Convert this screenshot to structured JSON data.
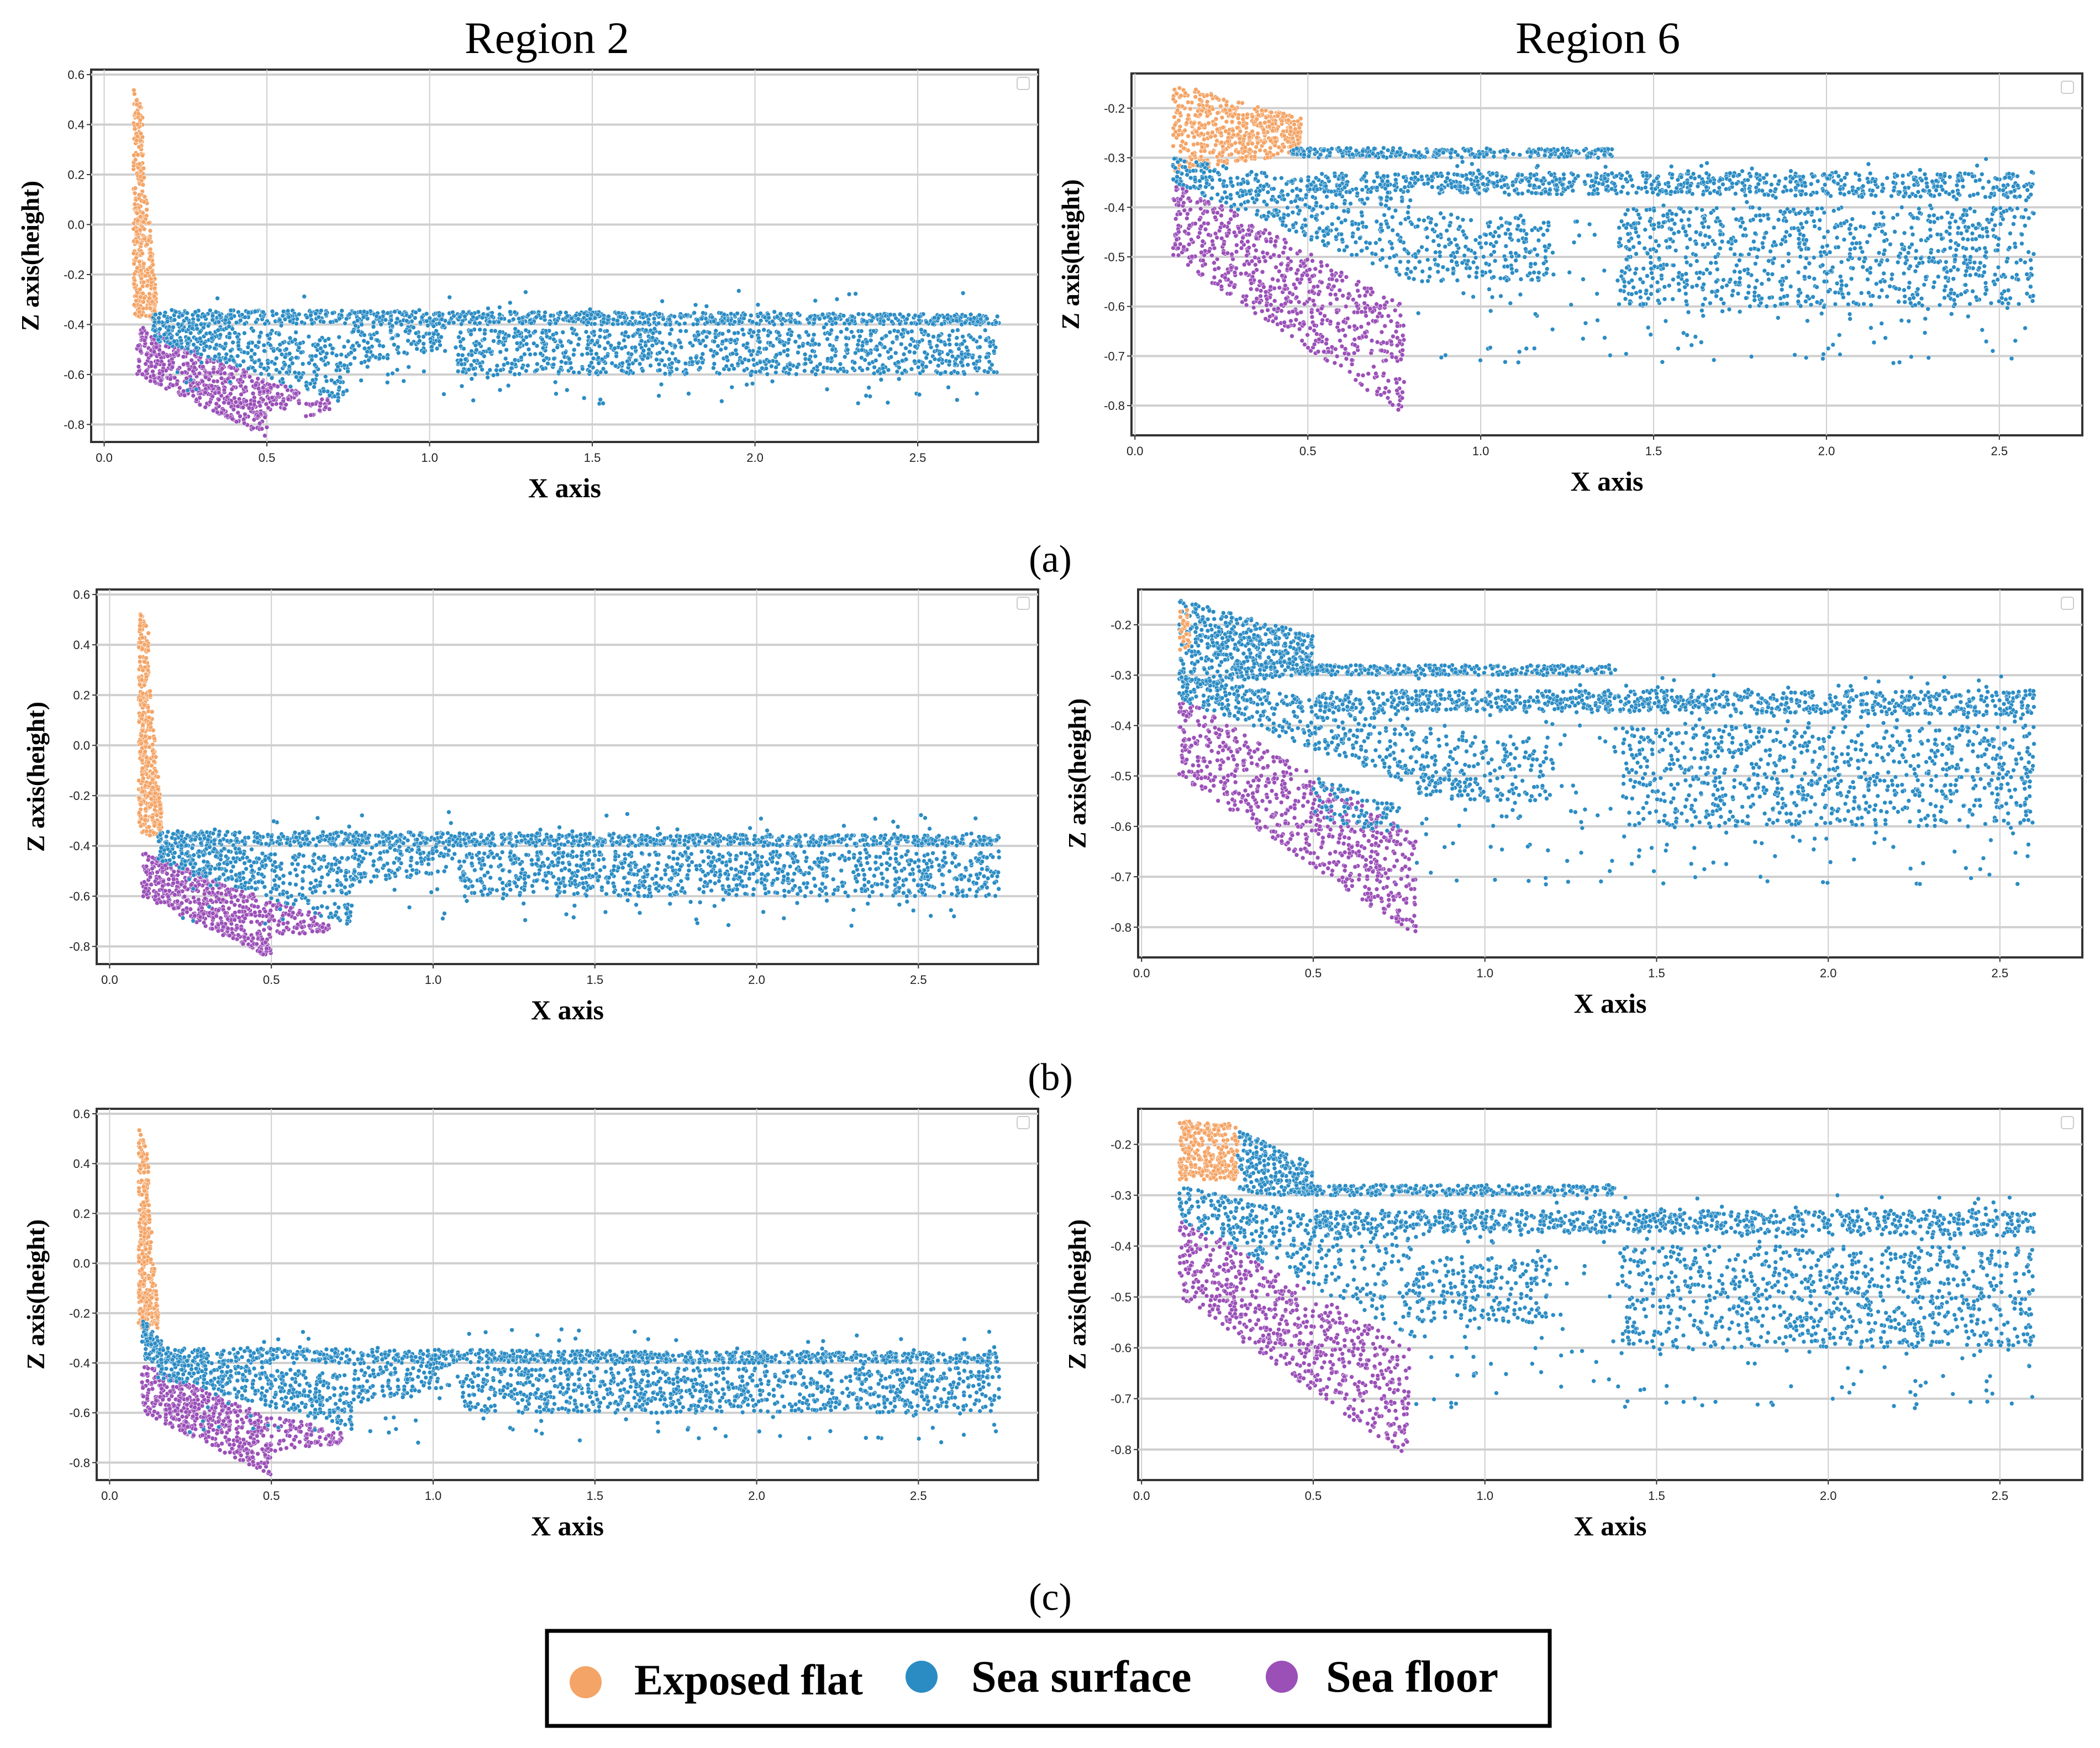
{
  "colors": {
    "exposed_flat": "#f4a466",
    "sea_surface": "#2b8cc4",
    "sea_floor": "#9b50b8"
  },
  "column_titles": [
    "Region 2",
    "Region 6"
  ],
  "row_labels": [
    "(a)",
    "(b)",
    "(c)"
  ],
  "legend": {
    "items": [
      {
        "key": "exposed_flat",
        "label": "Exposed flat"
      },
      {
        "key": "sea_surface",
        "label": "Sea surface"
      },
      {
        "key": "sea_floor",
        "label": "Sea floor"
      }
    ]
  },
  "chart_data": [
    {
      "type": "scatter",
      "row": "(a)",
      "title": "Region 2",
      "xlabel": "X axis",
      "ylabel": "Z axis(height)",
      "xlim": [
        -0.04,
        2.87
      ],
      "ylim": [
        -0.87,
        0.62
      ],
      "xticks": [
        "0.0",
        "0.5",
        "1.0",
        "1.5",
        "2.0",
        "2.5"
      ],
      "yticks": [
        "-0.8",
        "-0.6",
        "-0.4",
        "-0.2",
        "0.0",
        "0.2",
        "0.4",
        "0.6"
      ],
      "grid": true,
      "clusters": [
        {
          "class": "exposed_flat",
          "x": [
            0.09,
            0.12
          ],
          "top": [
            0.55,
            0.45
          ],
          "bottom": [
            -0.36,
            -0.38
          ],
          "n": 260
        },
        {
          "class": "exposed_flat",
          "x": [
            0.12,
            0.16
          ],
          "top": [
            0.3,
            -0.28
          ],
          "bottom": [
            -0.38,
            -0.38
          ],
          "n": 140
        },
        {
          "class": "sea_floor",
          "x": [
            0.1,
            0.5
          ],
          "top": [
            -0.4,
            -0.62
          ],
          "bottom": [
            -0.6,
            -0.85
          ],
          "n": 520
        },
        {
          "class": "sea_floor",
          "x": [
            0.5,
            0.6
          ],
          "top": [
            -0.62,
            -0.66
          ],
          "bottom": [
            -0.76,
            -0.72
          ],
          "n": 60
        },
        {
          "class": "sea_floor",
          "x": [
            0.62,
            0.7
          ],
          "top": [
            -0.68,
            -0.7
          ],
          "bottom": [
            -0.78,
            -0.74
          ],
          "n": 25
        },
        {
          "class": "sea_surface",
          "x": [
            0.15,
            2.75
          ],
          "top": [
            -0.34,
            -0.36
          ],
          "bottom": [
            -0.4,
            -0.4
          ],
          "n": 900
        },
        {
          "class": "sea_surface",
          "x": [
            0.15,
            0.75
          ],
          "top": [
            -0.38,
            -0.45
          ],
          "bottom": [
            -0.46,
            -0.72
          ],
          "n": 380
        },
        {
          "class": "sea_surface",
          "x": [
            0.75,
            1.05
          ],
          "top": [
            -0.4,
            -0.4
          ],
          "bottom": [
            -0.56,
            -0.5
          ],
          "n": 120
        },
        {
          "class": "sea_surface",
          "x": [
            1.08,
            2.75
          ],
          "top": [
            -0.42,
            -0.42
          ],
          "bottom": [
            -0.6,
            -0.6
          ],
          "n": 900
        },
        {
          "class": "sea_surface",
          "x": [
            0.2,
            2.75
          ],
          "top": [
            -0.26,
            -0.26
          ],
          "bottom": [
            -0.72,
            -0.72
          ],
          "n": 160
        }
      ]
    },
    {
      "type": "scatter",
      "row": "(a)",
      "title": "Region 6",
      "xlabel": "X axis",
      "ylabel": "Z axis(height)",
      "xlim": [
        -0.01,
        2.74
      ],
      "ylim": [
        -0.86,
        -0.13
      ],
      "xticks": [
        "0.0",
        "0.5",
        "1.0",
        "1.5",
        "2.0",
        "2.5"
      ],
      "yticks": [
        "-0.8",
        "-0.7",
        "-0.6",
        "-0.5",
        "-0.4",
        "-0.3",
        "-0.2"
      ],
      "grid": true,
      "clusters": [
        {
          "class": "exposed_flat",
          "x": [
            0.11,
            0.48
          ],
          "top": [
            -0.15,
            -0.22
          ],
          "bottom": [
            -0.33,
            -0.29
          ],
          "n": 520
        },
        {
          "class": "sea_floor",
          "x": [
            0.11,
            0.78
          ],
          "top": [
            -0.34,
            -0.6
          ],
          "bottom": [
            -0.5,
            -0.82
          ],
          "n": 700
        },
        {
          "class": "sea_surface",
          "x": [
            0.45,
            1.38
          ],
          "top": [
            -0.28,
            -0.28
          ],
          "bottom": [
            -0.3,
            -0.3
          ],
          "n": 280
        },
        {
          "class": "sea_surface",
          "x": [
            0.5,
            2.6
          ],
          "top": [
            -0.33,
            -0.33
          ],
          "bottom": [
            -0.37,
            -0.38
          ],
          "n": 800
        },
        {
          "class": "sea_surface",
          "x": [
            0.11,
            0.8
          ],
          "top": [
            -0.3,
            -0.38
          ],
          "bottom": [
            -0.35,
            -0.55
          ],
          "n": 400
        },
        {
          "class": "sea_surface",
          "x": [
            0.8,
            1.2
          ],
          "top": [
            -0.42,
            -0.42
          ],
          "bottom": [
            -0.55,
            -0.55
          ],
          "n": 200
        },
        {
          "class": "sea_surface",
          "x": [
            1.4,
            2.6
          ],
          "top": [
            -0.4,
            -0.4
          ],
          "bottom": [
            -0.6,
            -0.6
          ],
          "n": 800
        },
        {
          "class": "sea_surface",
          "x": [
            0.8,
            2.6
          ],
          "top": [
            -0.3,
            -0.3
          ],
          "bottom": [
            -0.72,
            -0.72
          ],
          "n": 260
        }
      ]
    },
    {
      "type": "scatter",
      "row": "(b)",
      "title": "Region 2",
      "xlabel": "X axis",
      "ylabel": "Z axis(height)",
      "xlim": [
        -0.04,
        2.87
      ],
      "ylim": [
        -0.87,
        0.62
      ],
      "xticks": [
        "0.0",
        "0.5",
        "1.0",
        "1.5",
        "2.0",
        "2.5"
      ],
      "yticks": [
        "-0.8",
        "-0.6",
        "-0.4",
        "-0.2",
        "0.0",
        "0.2",
        "0.4",
        "0.6"
      ],
      "grid": true,
      "clusters": [
        {
          "class": "exposed_flat",
          "x": [
            0.09,
            0.12
          ],
          "top": [
            0.55,
            0.45
          ],
          "bottom": [
            -0.34,
            -0.36
          ],
          "n": 260
        },
        {
          "class": "exposed_flat",
          "x": [
            0.12,
            0.16
          ],
          "top": [
            0.3,
            -0.26
          ],
          "bottom": [
            -0.36,
            -0.36
          ],
          "n": 140
        },
        {
          "class": "sea_floor",
          "x": [
            0.1,
            0.5
          ],
          "top": [
            -0.42,
            -0.62
          ],
          "bottom": [
            -0.6,
            -0.85
          ],
          "n": 520
        },
        {
          "class": "sea_floor",
          "x": [
            0.5,
            0.68
          ],
          "top": [
            -0.62,
            -0.68
          ],
          "bottom": [
            -0.76,
            -0.74
          ],
          "n": 80
        },
        {
          "class": "sea_surface",
          "x": [
            0.15,
            2.75
          ],
          "top": [
            -0.34,
            -0.36
          ],
          "bottom": [
            -0.4,
            -0.4
          ],
          "n": 900
        },
        {
          "class": "sea_surface",
          "x": [
            0.15,
            0.75
          ],
          "top": [
            -0.38,
            -0.45
          ],
          "bottom": [
            -0.46,
            -0.72
          ],
          "n": 380
        },
        {
          "class": "sea_surface",
          "x": [
            0.75,
            1.05
          ],
          "top": [
            -0.4,
            -0.4
          ],
          "bottom": [
            -0.56,
            -0.5
          ],
          "n": 120
        },
        {
          "class": "sea_surface",
          "x": [
            1.08,
            2.75
          ],
          "top": [
            -0.42,
            -0.42
          ],
          "bottom": [
            -0.6,
            -0.6
          ],
          "n": 900
        },
        {
          "class": "sea_surface",
          "x": [
            0.2,
            2.75
          ],
          "top": [
            -0.26,
            -0.26
          ],
          "bottom": [
            -0.72,
            -0.72
          ],
          "n": 160
        }
      ]
    },
    {
      "type": "scatter",
      "row": "(b)",
      "title": "Region 6",
      "xlabel": "X axis",
      "ylabel": "Z axis(height)",
      "xlim": [
        -0.01,
        2.74
      ],
      "ylim": [
        -0.86,
        -0.13
      ],
      "xticks": [
        "0.0",
        "0.5",
        "1.0",
        "1.5",
        "2.0",
        "2.5"
      ],
      "yticks": [
        "-0.8",
        "-0.7",
        "-0.6",
        "-0.5",
        "-0.4",
        "-0.3",
        "-0.2"
      ],
      "grid": true,
      "clusters": [
        {
          "class": "sea_surface",
          "x": [
            0.11,
            0.5
          ],
          "top": [
            -0.15,
            -0.22
          ],
          "bottom": [
            -0.32,
            -0.3
          ],
          "n": 520
        },
        {
          "class": "exposed_flat",
          "x": [
            0.11,
            0.14
          ],
          "top": [
            -0.17,
            -0.17
          ],
          "bottom": [
            -0.25,
            -0.25
          ],
          "n": 30
        },
        {
          "class": "sea_floor",
          "x": [
            0.11,
            0.8
          ],
          "top": [
            -0.34,
            -0.62
          ],
          "bottom": [
            -0.5,
            -0.82
          ],
          "n": 700
        },
        {
          "class": "sea_surface",
          "x": [
            0.5,
            0.75
          ],
          "top": [
            -0.5,
            -0.56
          ],
          "bottom": [
            -0.58,
            -0.62
          ],
          "n": 90
        },
        {
          "class": "sea_surface",
          "x": [
            0.45,
            1.38
          ],
          "top": [
            -0.28,
            -0.28
          ],
          "bottom": [
            -0.3,
            -0.3
          ],
          "n": 280
        },
        {
          "class": "sea_surface",
          "x": [
            0.5,
            2.6
          ],
          "top": [
            -0.33,
            -0.33
          ],
          "bottom": [
            -0.37,
            -0.38
          ],
          "n": 800
        },
        {
          "class": "sea_surface",
          "x": [
            0.11,
            0.8
          ],
          "top": [
            -0.3,
            -0.38
          ],
          "bottom": [
            -0.35,
            -0.52
          ],
          "n": 400
        },
        {
          "class": "sea_surface",
          "x": [
            0.8,
            1.2
          ],
          "top": [
            -0.42,
            -0.42
          ],
          "bottom": [
            -0.55,
            -0.55
          ],
          "n": 200
        },
        {
          "class": "sea_surface",
          "x": [
            1.4,
            2.6
          ],
          "top": [
            -0.4,
            -0.4
          ],
          "bottom": [
            -0.6,
            -0.6
          ],
          "n": 800
        },
        {
          "class": "sea_surface",
          "x": [
            0.8,
            2.6
          ],
          "top": [
            -0.3,
            -0.3
          ],
          "bottom": [
            -0.72,
            -0.72
          ],
          "n": 260
        }
      ]
    },
    {
      "type": "scatter",
      "row": "(c)",
      "title": "Region 2",
      "xlabel": "X axis",
      "ylabel": "Z axis(height)",
      "xlim": [
        -0.04,
        2.87
      ],
      "ylim": [
        -0.87,
        0.62
      ],
      "xticks": [
        "0.0",
        "0.5",
        "1.0",
        "1.5",
        "2.0",
        "2.5"
      ],
      "yticks": [
        "-0.8",
        "-0.6",
        "-0.4",
        "-0.2",
        "0.0",
        "0.2",
        "0.4",
        "0.6"
      ],
      "grid": true,
      "clusters": [
        {
          "class": "exposed_flat",
          "x": [
            0.09,
            0.12
          ],
          "top": [
            0.55,
            0.45
          ],
          "bottom": [
            -0.26,
            -0.26
          ],
          "n": 240
        },
        {
          "class": "exposed_flat",
          "x": [
            0.12,
            0.15
          ],
          "top": [
            0.3,
            -0.2
          ],
          "bottom": [
            -0.26,
            -0.26
          ],
          "n": 100
        },
        {
          "class": "sea_surface",
          "x": [
            0.1,
            0.16
          ],
          "top": [
            -0.22,
            -0.3
          ],
          "bottom": [
            -0.4,
            -0.4
          ],
          "n": 80
        },
        {
          "class": "sea_floor",
          "x": [
            0.1,
            0.5
          ],
          "top": [
            -0.4,
            -0.62
          ],
          "bottom": [
            -0.6,
            -0.85
          ],
          "n": 520
        },
        {
          "class": "sea_floor",
          "x": [
            0.5,
            0.72
          ],
          "top": [
            -0.6,
            -0.68
          ],
          "bottom": [
            -0.76,
            -0.72
          ],
          "n": 90
        },
        {
          "class": "sea_surface",
          "x": [
            0.15,
            2.75
          ],
          "top": [
            -0.34,
            -0.36
          ],
          "bottom": [
            -0.4,
            -0.4
          ],
          "n": 900
        },
        {
          "class": "sea_surface",
          "x": [
            0.15,
            0.75
          ],
          "top": [
            -0.38,
            -0.45
          ],
          "bottom": [
            -0.46,
            -0.66
          ],
          "n": 380
        },
        {
          "class": "sea_surface",
          "x": [
            0.75,
            1.05
          ],
          "top": [
            -0.4,
            -0.4
          ],
          "bottom": [
            -0.56,
            -0.5
          ],
          "n": 120
        },
        {
          "class": "sea_surface",
          "x": [
            1.08,
            2.75
          ],
          "top": [
            -0.42,
            -0.42
          ],
          "bottom": [
            -0.6,
            -0.6
          ],
          "n": 900
        },
        {
          "class": "sea_surface",
          "x": [
            0.2,
            2.75
          ],
          "top": [
            -0.26,
            -0.26
          ],
          "bottom": [
            -0.72,
            -0.72
          ],
          "n": 160
        }
      ]
    },
    {
      "type": "scatter",
      "row": "(c)",
      "title": "Region 6",
      "xlabel": "X axis",
      "ylabel": "Z axis(height)",
      "xlim": [
        -0.01,
        2.74
      ],
      "ylim": [
        -0.86,
        -0.13
      ],
      "xticks": [
        "0.0",
        "0.5",
        "1.0",
        "1.5",
        "2.0",
        "2.5"
      ],
      "yticks": [
        "-0.8",
        "-0.7",
        "-0.6",
        "-0.5",
        "-0.4",
        "-0.3",
        "-0.2"
      ],
      "grid": true,
      "clusters": [
        {
          "class": "exposed_flat",
          "x": [
            0.11,
            0.28
          ],
          "top": [
            -0.15,
            -0.16
          ],
          "bottom": [
            -0.27,
            -0.27
          ],
          "n": 300
        },
        {
          "class": "sea_surface",
          "x": [
            0.28,
            0.5
          ],
          "top": [
            -0.17,
            -0.24
          ],
          "bottom": [
            -0.3,
            -0.3
          ],
          "n": 240
        },
        {
          "class": "sea_floor",
          "x": [
            0.11,
            0.78
          ],
          "top": [
            -0.34,
            -0.6
          ],
          "bottom": [
            -0.5,
            -0.82
          ],
          "n": 700
        },
        {
          "class": "sea_surface",
          "x": [
            0.45,
            1.38
          ],
          "top": [
            -0.28,
            -0.28
          ],
          "bottom": [
            -0.3,
            -0.3
          ],
          "n": 280
        },
        {
          "class": "sea_surface",
          "x": [
            0.5,
            2.6
          ],
          "top": [
            -0.33,
            -0.33
          ],
          "bottom": [
            -0.37,
            -0.38
          ],
          "n": 800
        },
        {
          "class": "sea_surface",
          "x": [
            0.11,
            0.8
          ],
          "top": [
            -0.28,
            -0.38
          ],
          "bottom": [
            -0.35,
            -0.58
          ],
          "n": 400
        },
        {
          "class": "sea_surface",
          "x": [
            0.8,
            1.2
          ],
          "top": [
            -0.42,
            -0.42
          ],
          "bottom": [
            -0.55,
            -0.55
          ],
          "n": 200
        },
        {
          "class": "sea_surface",
          "x": [
            1.4,
            2.6
          ],
          "top": [
            -0.4,
            -0.4
          ],
          "bottom": [
            -0.6,
            -0.6
          ],
          "n": 800
        },
        {
          "class": "sea_surface",
          "x": [
            0.8,
            2.6
          ],
          "top": [
            -0.3,
            -0.3
          ],
          "bottom": [
            -0.72,
            -0.72
          ],
          "n": 260
        }
      ]
    }
  ]
}
